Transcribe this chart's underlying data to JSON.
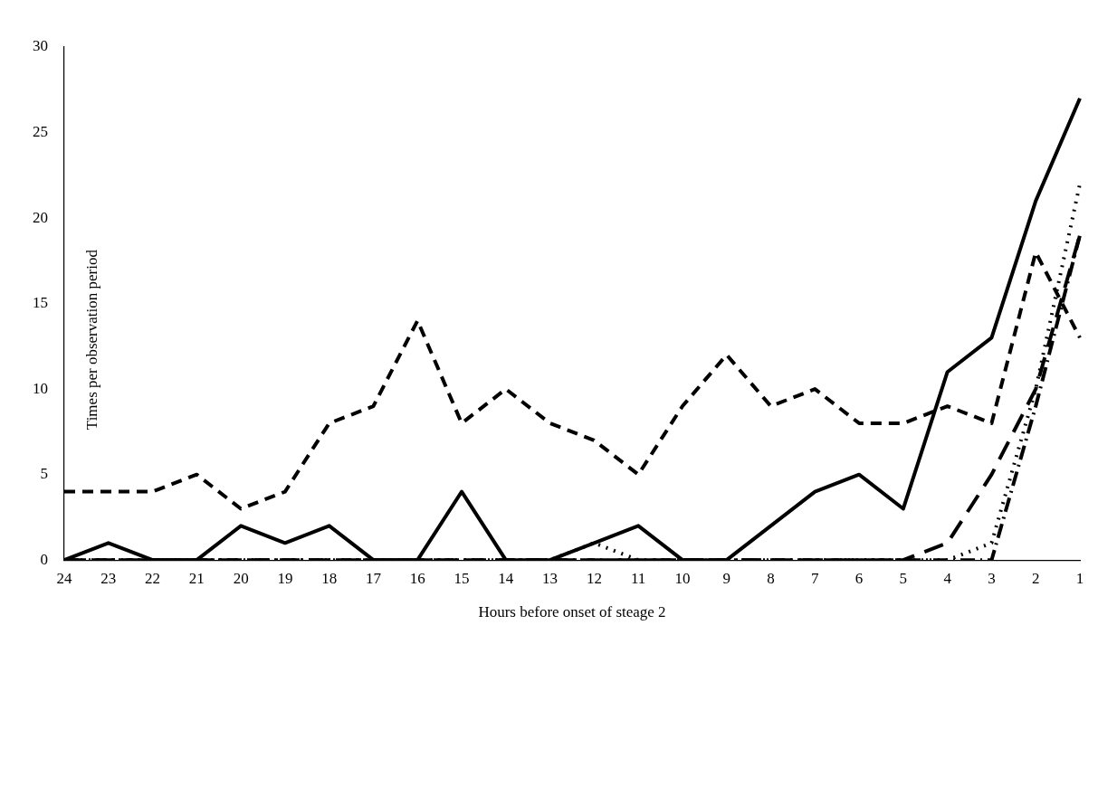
{
  "chart_data": {
    "type": "line",
    "xlabel": "Hours before onset of steage 2",
    "ylabel": "Times per observation period",
    "categories": [
      "24",
      "23",
      "22",
      "21",
      "20",
      "19",
      "18",
      "17",
      "16",
      "15",
      "14",
      "13",
      "12",
      "11",
      "10",
      "9",
      "8",
      "7",
      "6",
      "5",
      "4",
      "3",
      "2",
      "1"
    ],
    "ylim": [
      0,
      30
    ],
    "yticks": [
      0,
      5,
      10,
      15,
      20,
      25,
      30
    ],
    "grid": false,
    "legend": false,
    "marker": "none",
    "series": [
      {
        "color": "#000000",
        "line_style": "solid",
        "values": [
          0,
          1,
          0,
          0,
          2,
          1,
          2,
          0,
          0,
          4,
          0,
          0,
          1,
          2,
          0,
          0,
          2,
          4,
          5,
          3,
          11,
          13,
          21,
          27
        ]
      },
      {
        "color": "#000000",
        "line_style": "dashed",
        "values": [
          4,
          4,
          4,
          5,
          3,
          4,
          8,
          9,
          14,
          8,
          10,
          8,
          7,
          5,
          9,
          12,
          9,
          10,
          8,
          8,
          9,
          8,
          18,
          13
        ]
      },
      {
        "color": "#000000",
        "line_style": "longdashed",
        "values": [
          0,
          0,
          0,
          0,
          0,
          0,
          0,
          0,
          0,
          0,
          0,
          0,
          0,
          0,
          0,
          0,
          0,
          0,
          0,
          0,
          1,
          5,
          10,
          19
        ]
      },
      {
        "color": "#000000",
        "line_style": "dashdot",
        "values": [
          0,
          0,
          0,
          0,
          0,
          0,
          0,
          0,
          0,
          0,
          0,
          0,
          0,
          0,
          0,
          0,
          0,
          0,
          0,
          0,
          0,
          0,
          9,
          19
        ]
      },
      {
        "color": "#000000",
        "line_style": "dotted",
        "values": [
          0,
          0,
          0,
          0,
          0,
          0,
          0,
          0,
          0,
          0,
          0,
          0,
          1,
          0,
          0,
          0,
          0,
          0,
          0,
          0,
          0,
          1,
          10,
          22
        ]
      }
    ]
  }
}
